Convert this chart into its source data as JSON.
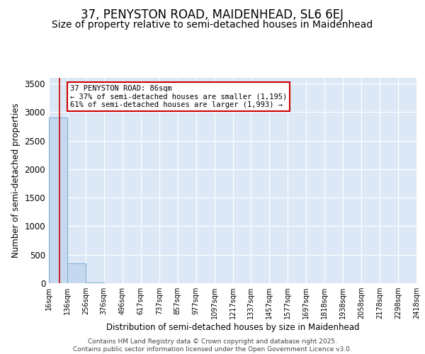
{
  "title": "37, PENYSTON ROAD, MAIDENHEAD, SL6 6EJ",
  "subtitle": "Size of property relative to semi-detached houses in Maidenhead",
  "xlabel": "Distribution of semi-detached houses by size in Maidenhead",
  "ylabel": "Number of semi-detached properties",
  "bin_edges": [
    16,
    136,
    256,
    376,
    496,
    617,
    737,
    857,
    977,
    1097,
    1217,
    1337,
    1457,
    1577,
    1697,
    1818,
    1938,
    2058,
    2178,
    2298,
    2418
  ],
  "bin_labels": [
    "16sqm",
    "136sqm",
    "256sqm",
    "376sqm",
    "496sqm",
    "617sqm",
    "737sqm",
    "857sqm",
    "977sqm",
    "1097sqm",
    "1217sqm",
    "1337sqm",
    "1457sqm",
    "1577sqm",
    "1697sqm",
    "1818sqm",
    "1938sqm",
    "2058sqm",
    "2178sqm",
    "2298sqm",
    "2418sqm"
  ],
  "bar_heights": [
    2900,
    350,
    10,
    0,
    0,
    0,
    0,
    0,
    0,
    0,
    0,
    0,
    0,
    0,
    0,
    0,
    0,
    0,
    0,
    0
  ],
  "bar_color": "#c5d8ef",
  "bar_edge_color": "#7aadcf",
  "property_size": 86,
  "property_line_color": "#cc0000",
  "annotation_title": "37 PENYSTON ROAD: 86sqm",
  "annotation_line1": "← 37% of semi-detached houses are smaller (1,195)",
  "annotation_line2": "61% of semi-detached houses are larger (1,993) →",
  "annotation_box_color": "#ffffff",
  "annotation_box_edge_color": "#cc0000",
  "ylim": [
    0,
    3600
  ],
  "yticks": [
    0,
    500,
    1000,
    1500,
    2000,
    2500,
    3000,
    3500
  ],
  "background_color": "#dce8f5",
  "fig_background": "#ffffff",
  "footer_line1": "Contains HM Land Registry data © Crown copyright and database right 2025.",
  "footer_line2": "Contains public sector information licensed under the Open Government Licence v3.0.",
  "title_fontsize": 12,
  "subtitle_fontsize": 10,
  "footer_fontsize": 6.5
}
